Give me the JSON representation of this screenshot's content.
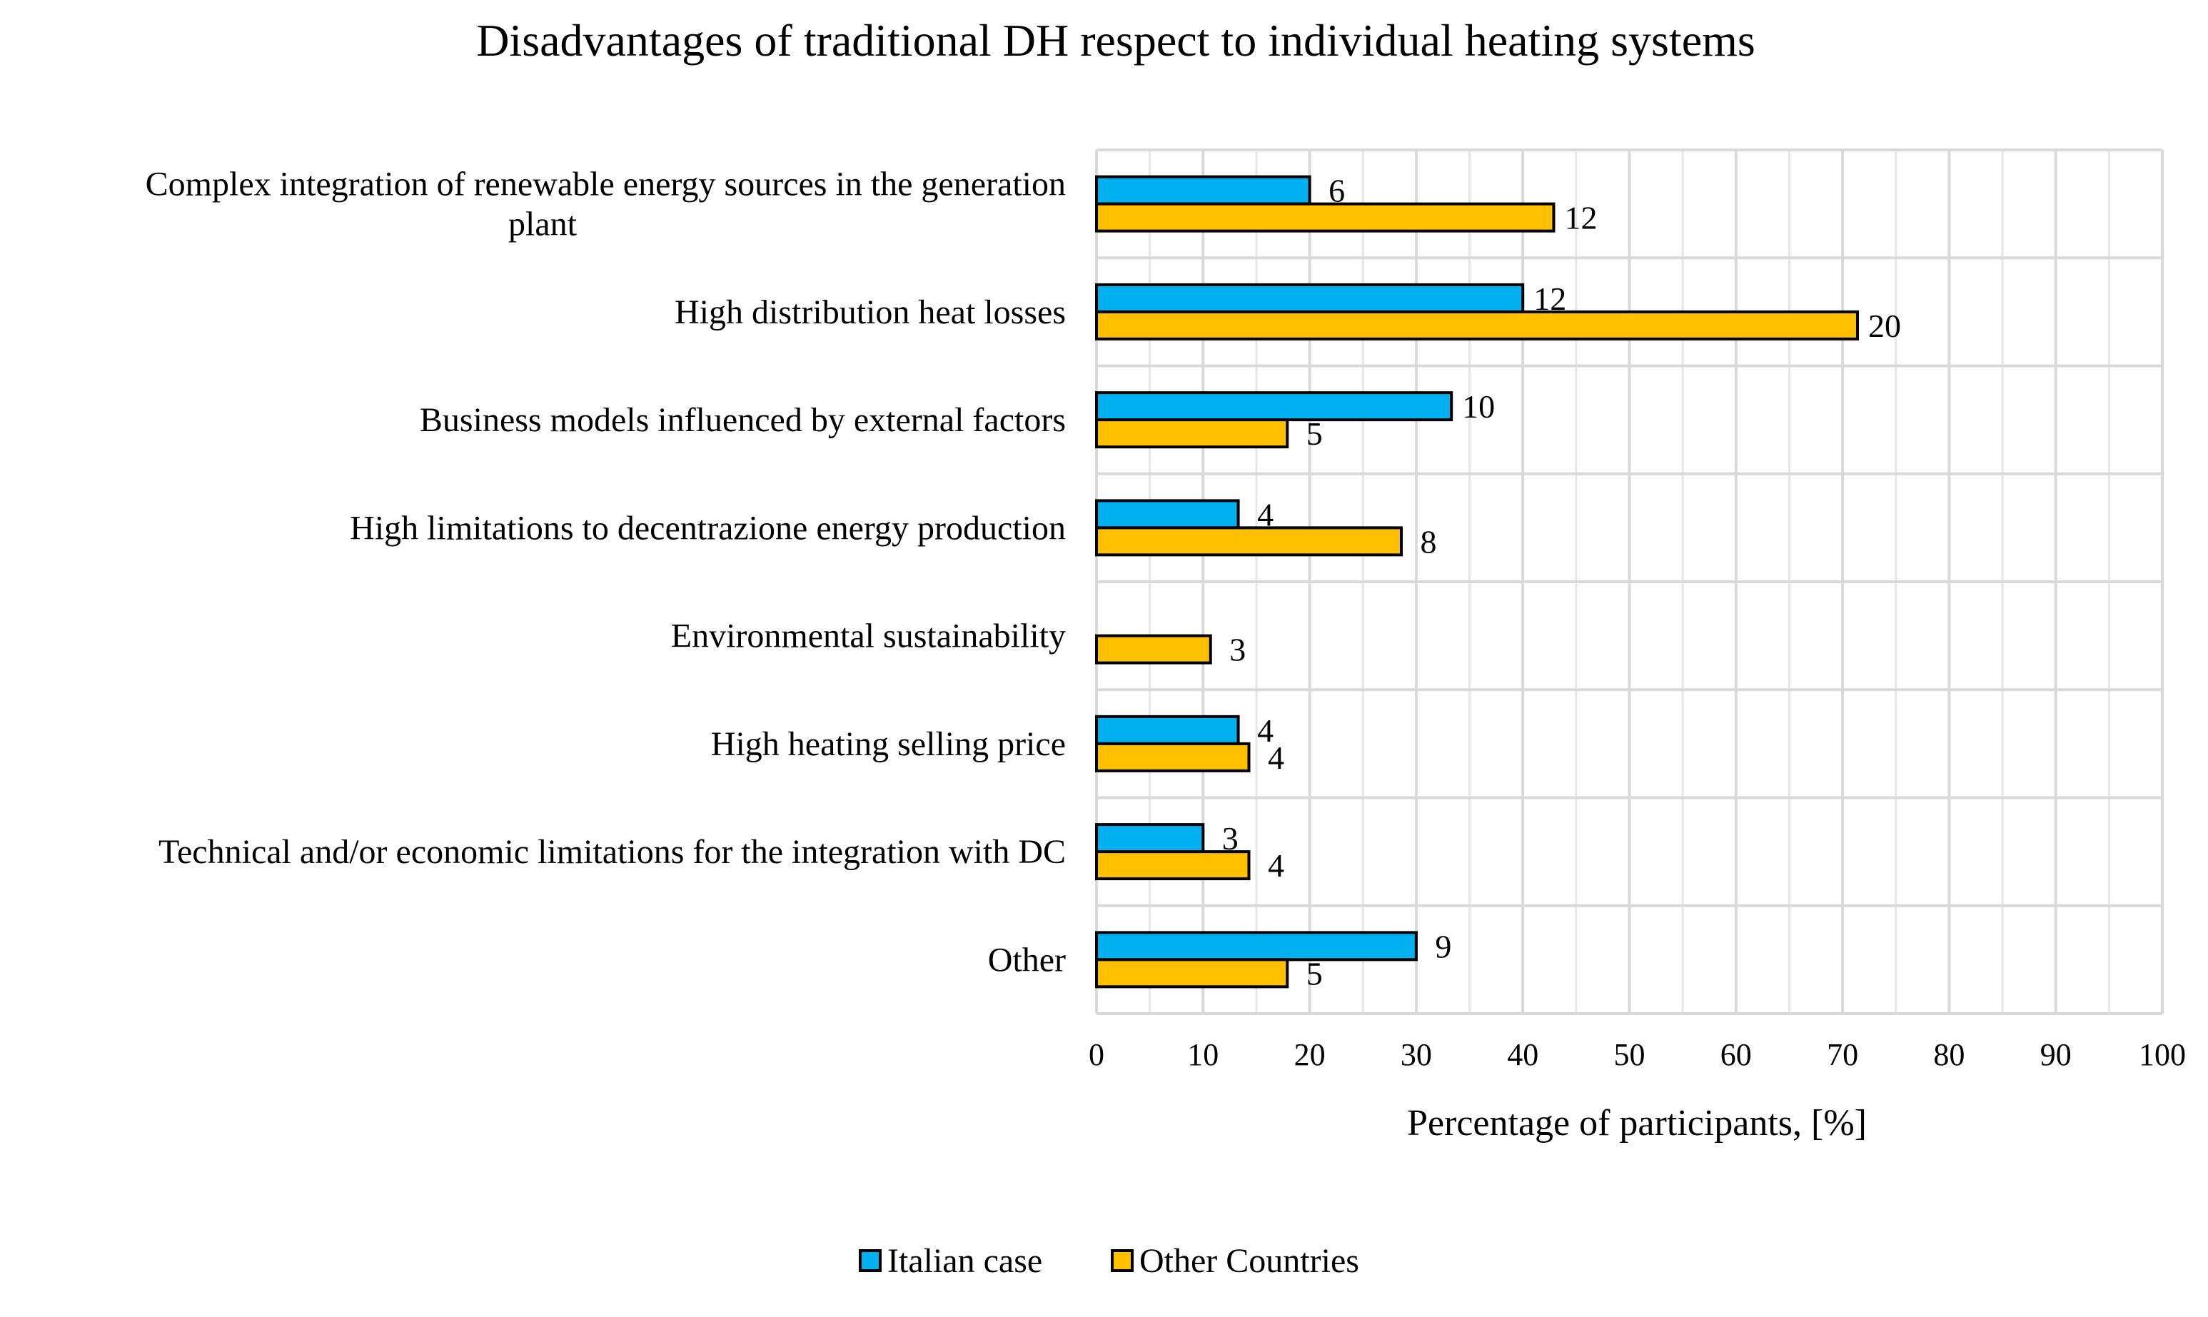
{
  "chart_data": {
    "type": "bar",
    "orientation": "horizontal",
    "title": "Disadvantages of traditional DH respect to individual heating systems",
    "xlabel": "Percentage of participants, [%]",
    "ylabel": "",
    "xlim": [
      0,
      100
    ],
    "x_ticks": [
      0,
      10,
      20,
      30,
      40,
      50,
      60,
      70,
      80,
      90,
      100
    ],
    "grid": true,
    "legend_position": "bottom-center",
    "categories": [
      [
        "Complex integration of renewable energy sources in the generation",
        "plant"
      ],
      [
        "High distribution heat losses"
      ],
      [
        "Business models influenced by external factors"
      ],
      [
        "High limitations to decentrazione energy production"
      ],
      [
        "Environmental sustainability"
      ],
      [
        "High heating selling price"
      ],
      [
        "Technical and/or economic limitations for the integration with DC"
      ],
      [
        "Other"
      ]
    ],
    "series": [
      {
        "name": "Italian case",
        "color": "#00B0F0",
        "values": [
          20,
          40,
          33.3,
          13.3,
          0,
          13.3,
          10,
          30
        ],
        "labels": [
          "6",
          "12",
          "10",
          "4",
          null,
          "4",
          "3",
          "9"
        ]
      },
      {
        "name": "Other Countries",
        "color": "#FFC000",
        "values": [
          42.9,
          71.4,
          17.9,
          28.6,
          10.7,
          14.3,
          14.3,
          17.9
        ],
        "labels": [
          "12",
          "20",
          "5",
          "8",
          "3",
          "4",
          "4",
          "5"
        ]
      }
    ]
  }
}
